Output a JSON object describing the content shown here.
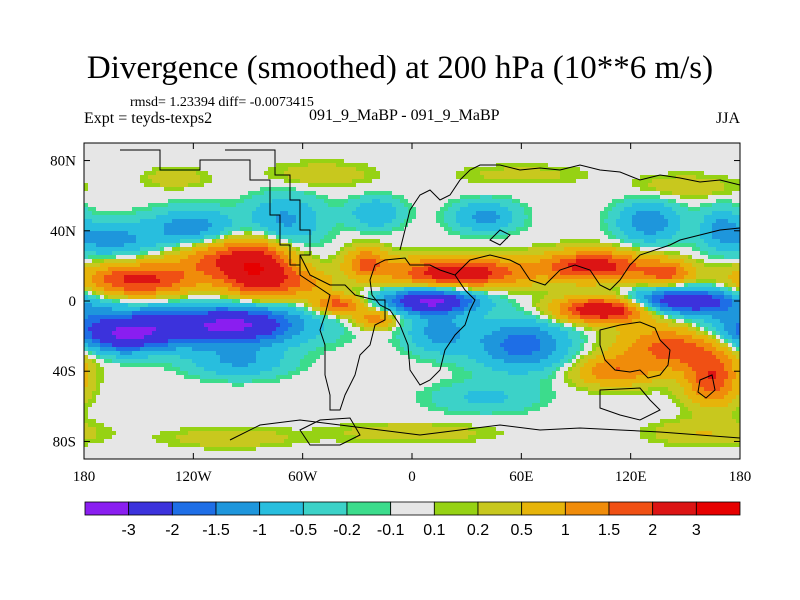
{
  "chart_data": {
    "type": "heatmap",
    "title": "Divergence (smoothed) at 200 hPa (10**6 m/s)",
    "stats_text": "rmsd= 1.23394 diff= -0.0073415",
    "expt_text": "Expt = teyds-texps2",
    "case_text": "091_9_MaBP - 091_9_MaBP",
    "season": "JJA",
    "xlim": [
      -180,
      180
    ],
    "ylim": [
      -90,
      90
    ],
    "x_ticks": [
      {
        "value": -180,
        "label": "180"
      },
      {
        "value": -120,
        "label": "120W"
      },
      {
        "value": -60,
        "label": "60W"
      },
      {
        "value": 0,
        "label": "0"
      },
      {
        "value": 60,
        "label": "60E"
      },
      {
        "value": 120,
        "label": "120E"
      },
      {
        "value": 180,
        "label": "180"
      }
    ],
    "y_ticks": [
      {
        "value": 80,
        "label": "80N"
      },
      {
        "value": 40,
        "label": "40N"
      },
      {
        "value": 0,
        "label": "0"
      },
      {
        "value": -40,
        "label": "40S"
      },
      {
        "value": -80,
        "label": "80S"
      }
    ],
    "colorbar": {
      "labels": [
        "-3",
        "-2",
        "-1.5",
        "-1",
        "-0.5",
        "-0.2",
        "-0.1",
        "0.1",
        "0.2",
        "0.5",
        "1",
        "1.5",
        "2",
        "3"
      ],
      "colors": [
        "#8a1ef0",
        "#3c32dc",
        "#1e6ee6",
        "#1e96dc",
        "#28bede",
        "#3cd2c8",
        "#3cdc8c",
        "#e6e6e6",
        "#96d214",
        "#c8c81e",
        "#e6b40a",
        "#f08c0a",
        "#f05014",
        "#dc1414",
        "#e60000"
      ]
    },
    "fields": [
      {
        "x": -150,
        "y": 12,
        "v": 2.2,
        "sx": 22,
        "sy": 7
      },
      {
        "x": -85,
        "y": 18,
        "v": 2.8,
        "sx": 14,
        "sy": 12
      },
      {
        "x": -110,
        "y": 24,
        "v": 1.2,
        "sx": 16,
        "sy": 8
      },
      {
        "x": -60,
        "y": 10,
        "v": 1.0,
        "sx": 12,
        "sy": 6
      },
      {
        "x": 25,
        "y": 16,
        "v": 2.6,
        "sx": 26,
        "sy": 6
      },
      {
        "x": 100,
        "y": 20,
        "v": 2.4,
        "sx": 20,
        "sy": 6
      },
      {
        "x": 140,
        "y": 16,
        "v": 1.6,
        "sx": 10,
        "sy": 5
      },
      {
        "x": -25,
        "y": 22,
        "v": 1.5,
        "sx": 8,
        "sy": 6
      },
      {
        "x": 10,
        "y": 0,
        "v": -3.2,
        "sx": 18,
        "sy": 5
      },
      {
        "x": 150,
        "y": 0,
        "v": -3.0,
        "sx": 20,
        "sy": 5
      },
      {
        "x": 105,
        "y": -5,
        "v": 2.9,
        "sx": 18,
        "sy": 5
      },
      {
        "x": -40,
        "y": -2,
        "v": 1.8,
        "sx": 10,
        "sy": 4
      },
      {
        "x": -20,
        "y": -10,
        "v": 1.4,
        "sx": 8,
        "sy": 4
      },
      {
        "x": -140,
        "y": -15,
        "v": -2.6,
        "sx": 45,
        "sy": 8
      },
      {
        "x": -160,
        "y": -22,
        "v": -1.4,
        "sx": 15,
        "sy": 6
      },
      {
        "x": -90,
        "y": -12,
        "v": -1.8,
        "sx": 20,
        "sy": 8
      },
      {
        "x": -95,
        "y": -35,
        "v": -1.0,
        "sx": 18,
        "sy": 6
      },
      {
        "x": 60,
        "y": -25,
        "v": -1.8,
        "sx": 18,
        "sy": 10
      },
      {
        "x": 15,
        "y": -18,
        "v": -1.2,
        "sx": 12,
        "sy": 8
      },
      {
        "x": 40,
        "y": -55,
        "v": -0.6,
        "sx": 20,
        "sy": 6
      },
      {
        "x": 145,
        "y": -25,
        "v": 2.0,
        "sx": 22,
        "sy": 10
      },
      {
        "x": 110,
        "y": -40,
        "v": 1.3,
        "sx": 15,
        "sy": 6
      },
      {
        "x": 165,
        "y": -45,
        "v": 1.8,
        "sx": 10,
        "sy": 10
      },
      {
        "x": -165,
        "y": 35,
        "v": -1.2,
        "sx": 18,
        "sy": 7
      },
      {
        "x": -120,
        "y": 42,
        "v": -1.4,
        "sx": 16,
        "sy": 7
      },
      {
        "x": -70,
        "y": 45,
        "v": -1.2,
        "sx": 14,
        "sy": 10
      },
      {
        "x": -20,
        "y": 50,
        "v": -1.0,
        "sx": 10,
        "sy": 6
      },
      {
        "x": 40,
        "y": 48,
        "v": -1.2,
        "sx": 12,
        "sy": 6
      },
      {
        "x": 130,
        "y": 45,
        "v": -1.4,
        "sx": 12,
        "sy": 8
      },
      {
        "x": 170,
        "y": 42,
        "v": -1.0,
        "sx": 8,
        "sy": 8
      },
      {
        "x": -130,
        "y": 70,
        "v": 0.4,
        "sx": 12,
        "sy": 4
      },
      {
        "x": -50,
        "y": 72,
        "v": 0.4,
        "sx": 20,
        "sy": 5
      },
      {
        "x": 60,
        "y": 72,
        "v": 0.3,
        "sx": 25,
        "sy": 4
      },
      {
        "x": 150,
        "y": 65,
        "v": 0.4,
        "sx": 20,
        "sy": 5
      },
      {
        "x": -100,
        "y": -78,
        "v": 0.4,
        "sx": 25,
        "sy": 4
      },
      {
        "x": 0,
        "y": -75,
        "v": 0.4,
        "sx": 30,
        "sy": 4
      },
      {
        "x": 160,
        "y": -75,
        "v": 0.5,
        "sx": 20,
        "sy": 5
      }
    ]
  }
}
